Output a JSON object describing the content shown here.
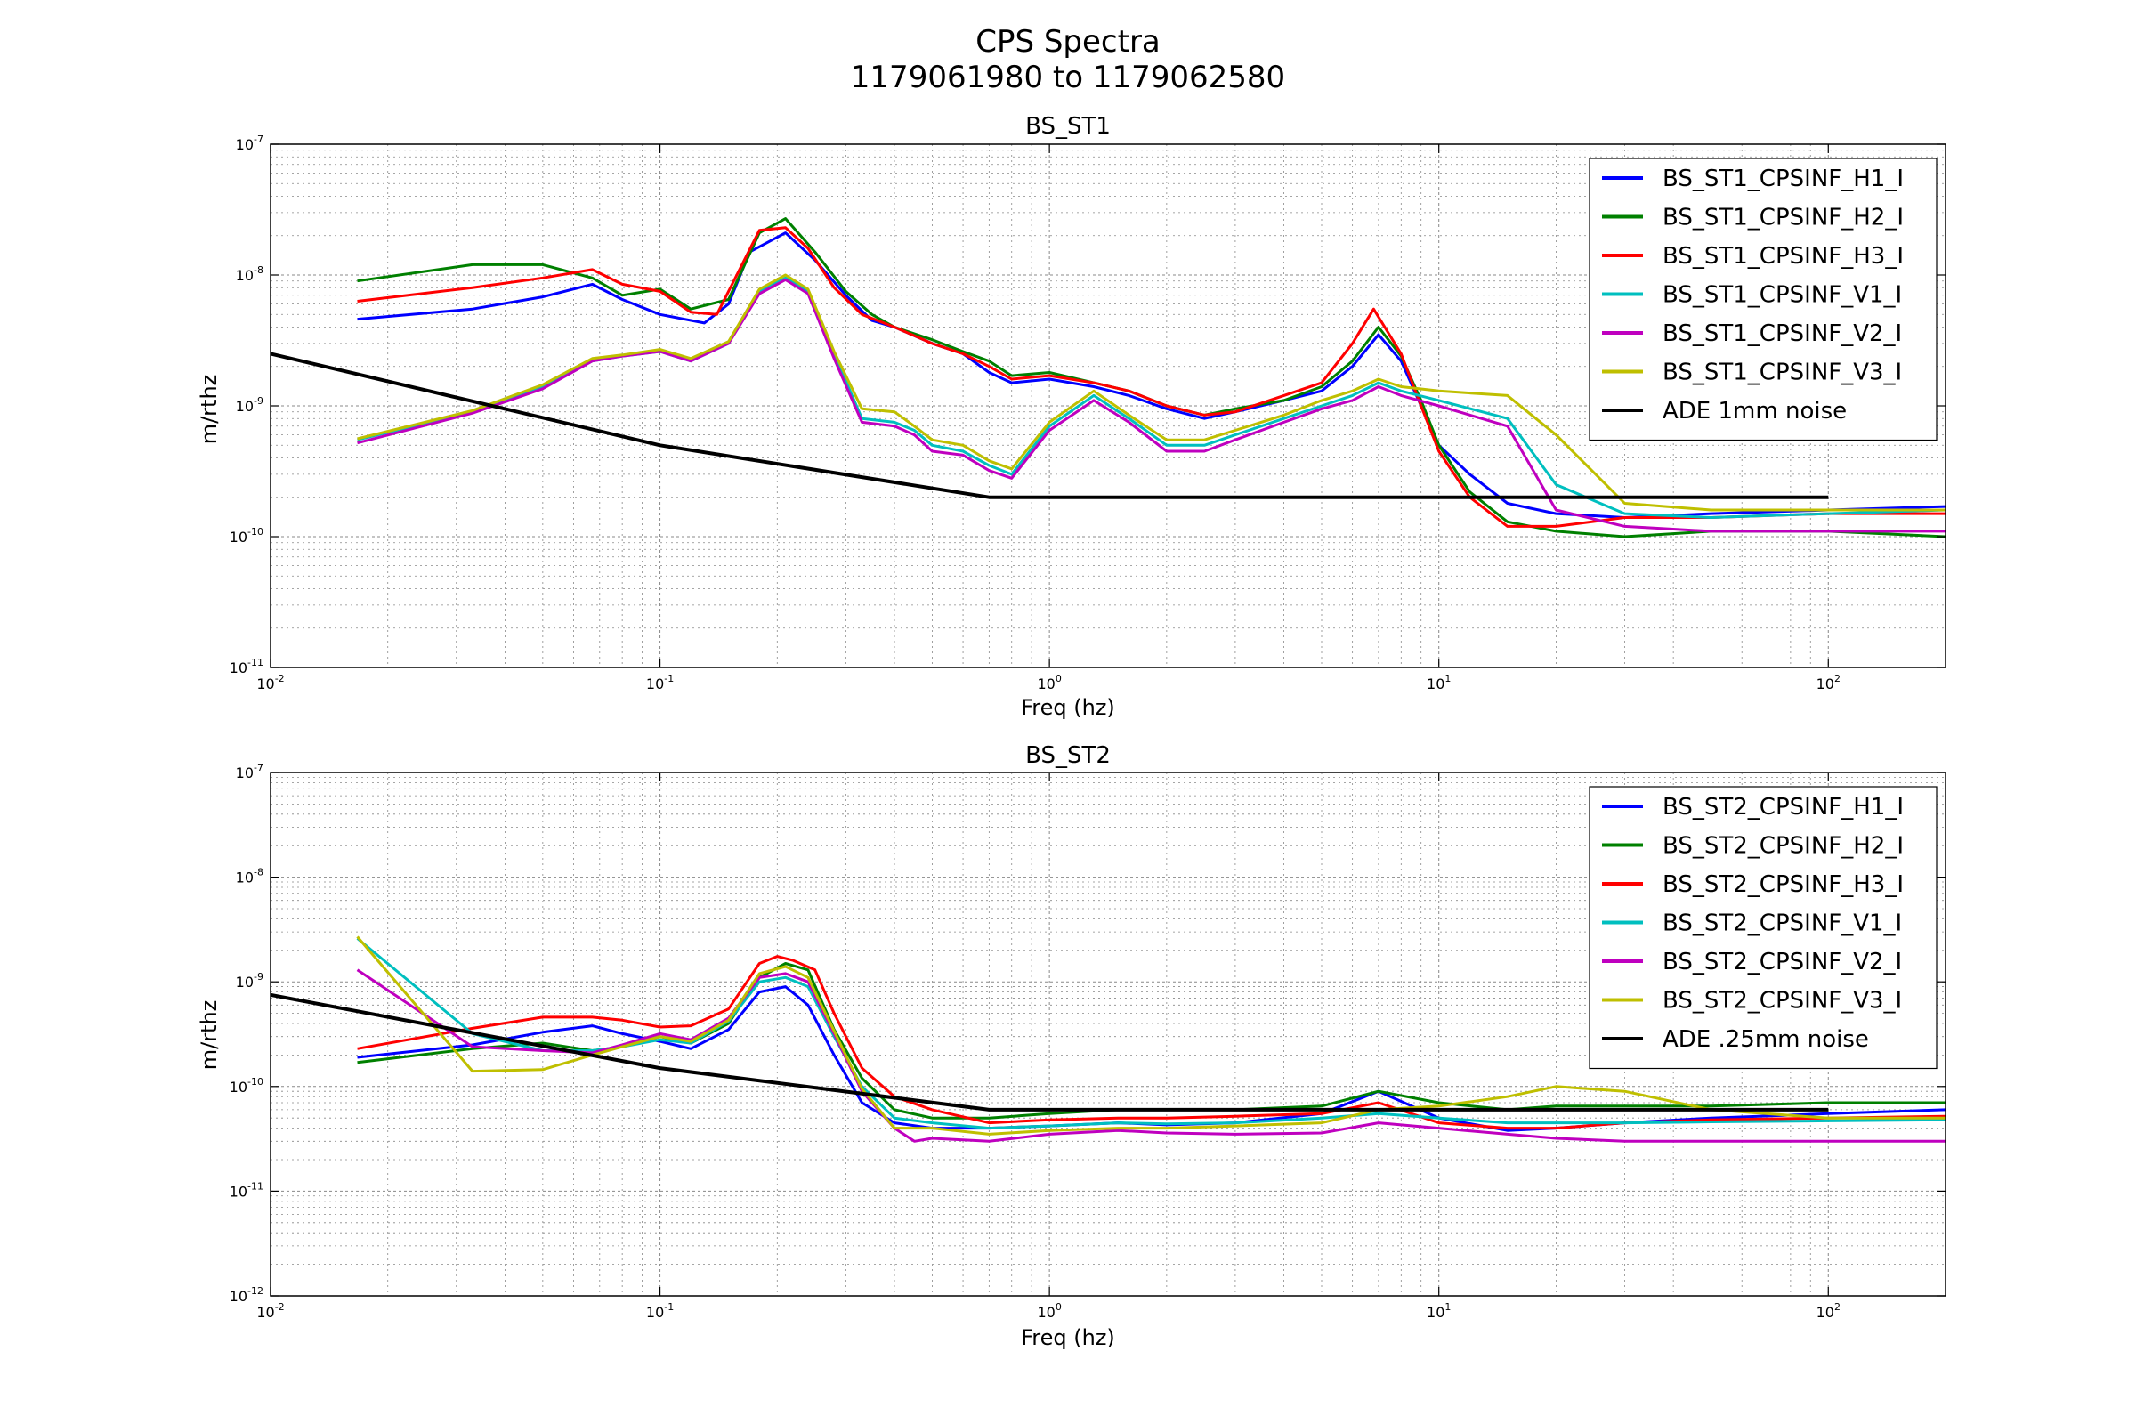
{
  "figure": {
    "title_line1": "CPS Spectra",
    "title_line2": "1179061980 to 1179062580"
  },
  "chart_data": [
    {
      "type": "line",
      "title": "BS_ST1",
      "xlabel": "Freq (hz)",
      "ylabel": "m/rthz",
      "xscale": "log",
      "yscale": "log",
      "xlim": [
        0.01,
        200
      ],
      "ylim": [
        1e-11,
        1e-07
      ],
      "x_tick_labels": [
        "10^-2",
        "10^-1",
        "10^0",
        "10^1",
        "10^2"
      ],
      "y_tick_labels": [
        "10^-11",
        "10^-10",
        "10^-9",
        "10^-8",
        "10^-7"
      ],
      "grid": true,
      "legend_position": "upper-right",
      "series": [
        {
          "name": "BS_ST1_CPSINF_H1_I",
          "color": "#0000ff",
          "x": [
            0.0167,
            0.033,
            0.05,
            0.067,
            0.08,
            0.1,
            0.13,
            0.15,
            0.17,
            0.21,
            0.25,
            0.3,
            0.35,
            0.4,
            0.5,
            0.6,
            0.7,
            0.8,
            1.0,
            1.3,
            1.6,
            2.0,
            2.5,
            3.0,
            4.0,
            5.0,
            6.0,
            7.0,
            8.0,
            9.0,
            10.0,
            12.0,
            15.0,
            20.0,
            30.0,
            50.0,
            100.0,
            200.0
          ],
          "y": [
            4.6e-09,
            5.5e-09,
            6.8e-09,
            8.5e-09,
            6.5e-09,
            5e-09,
            4.3e-09,
            6e-09,
            1.5e-08,
            2.1e-08,
            1.3e-08,
            7e-09,
            4.5e-09,
            4e-09,
            3e-09,
            2.5e-09,
            1.8e-09,
            1.5e-09,
            1.6e-09,
            1.4e-09,
            1.2e-09,
            9.5e-10,
            8e-10,
            9e-10,
            1.1e-09,
            1.3e-09,
            2e-09,
            3.5e-09,
            2.2e-09,
            1e-09,
            5e-10,
            3e-10,
            1.8e-10,
            1.5e-10,
            1.4e-10,
            1.5e-10,
            1.6e-10,
            1.7e-10
          ]
        },
        {
          "name": "BS_ST1_CPSINF_H2_I",
          "color": "#008000",
          "x": [
            0.0167,
            0.033,
            0.05,
            0.067,
            0.08,
            0.1,
            0.12,
            0.15,
            0.18,
            0.21,
            0.25,
            0.3,
            0.35,
            0.4,
            0.5,
            0.6,
            0.7,
            0.8,
            1.0,
            1.3,
            1.6,
            2.0,
            2.5,
            3.0,
            4.0,
            5.0,
            6.0,
            7.0,
            8.0,
            9.0,
            10.0,
            12.0,
            15.0,
            20.0,
            30.0,
            50.0,
            100.0,
            200.0
          ],
          "y": [
            9e-09,
            1.2e-08,
            1.2e-08,
            9.5e-09,
            7e-09,
            7.8e-09,
            5.5e-09,
            6.5e-09,
            2.1e-08,
            2.7e-08,
            1.5e-08,
            7.5e-09,
            5e-09,
            4e-09,
            3.2e-09,
            2.6e-09,
            2.2e-09,
            1.7e-09,
            1.8e-09,
            1.5e-09,
            1.3e-09,
            1e-09,
            8.5e-10,
            9.5e-10,
            1.1e-09,
            1.4e-09,
            2.2e-09,
            4e-09,
            2.4e-09,
            1.1e-09,
            5e-10,
            2.2e-10,
            1.3e-10,
            1.1e-10,
            1e-10,
            1.1e-10,
            1.1e-10,
            1e-10
          ]
        },
        {
          "name": "BS_ST1_CPSINF_H3_I",
          "color": "#ff0000",
          "x": [
            0.0167,
            0.033,
            0.05,
            0.067,
            0.08,
            0.1,
            0.12,
            0.14,
            0.18,
            0.21,
            0.24,
            0.28,
            0.33,
            0.4,
            0.5,
            0.6,
            0.7,
            0.8,
            1.0,
            1.3,
            1.6,
            2.0,
            2.5,
            3.0,
            4.0,
            5.0,
            6.0,
            6.8,
            8.0,
            9.0,
            10.0,
            12.0,
            15.0,
            20.0,
            30.0,
            50.0,
            100.0,
            200.0
          ],
          "y": [
            6.3e-09,
            8e-09,
            9.5e-09,
            1.1e-08,
            8.5e-09,
            7.5e-09,
            5.2e-09,
            5e-09,
            2.2e-08,
            2.3e-08,
            1.6e-08,
            8e-09,
            5e-09,
            4e-09,
            3e-09,
            2.5e-09,
            2e-09,
            1.6e-09,
            1.7e-09,
            1.5e-09,
            1.3e-09,
            1e-09,
            8.5e-10,
            9e-10,
            1.2e-09,
            1.5e-09,
            3e-09,
            5.5e-09,
            2.5e-09,
            1e-09,
            4.5e-10,
            2e-10,
            1.2e-10,
            1.2e-10,
            1.4e-10,
            1.4e-10,
            1.5e-10,
            1.5e-10
          ]
        },
        {
          "name": "BS_ST1_CPSINF_V1_I",
          "color": "#00bfbf",
          "x": [
            0.0167,
            0.033,
            0.05,
            0.067,
            0.08,
            0.1,
            0.12,
            0.15,
            0.18,
            0.21,
            0.24,
            0.28,
            0.33,
            0.4,
            0.45,
            0.5,
            0.6,
            0.7,
            0.8,
            1.0,
            1.3,
            1.6,
            2.0,
            2.5,
            3.0,
            4.0,
            5.0,
            6.0,
            7.0,
            8.0,
            10.0,
            15.0,
            20.0,
            30.0,
            50.0,
            100.0,
            200.0
          ],
          "y": [
            5.5e-10,
            9e-10,
            1.4e-09,
            2.2e-09,
            2.4e-09,
            2.6e-09,
            2.2e-09,
            3e-09,
            7.5e-09,
            9.5e-09,
            7.5e-09,
            2.5e-09,
            8e-10,
            7.5e-10,
            6.5e-10,
            5e-10,
            4.5e-10,
            3.5e-10,
            3e-10,
            7e-10,
            1.2e-09,
            8e-10,
            5e-10,
            5e-10,
            6e-10,
            8e-10,
            1e-09,
            1.2e-09,
            1.5e-09,
            1.3e-09,
            1.1e-09,
            8e-10,
            2.5e-10,
            1.5e-10,
            1.4e-10,
            1.5e-10,
            1.6e-10
          ]
        },
        {
          "name": "BS_ST1_CPSINF_V2_I",
          "color": "#bf00bf",
          "x": [
            0.0167,
            0.033,
            0.05,
            0.067,
            0.08,
            0.1,
            0.12,
            0.15,
            0.18,
            0.21,
            0.24,
            0.28,
            0.33,
            0.4,
            0.45,
            0.5,
            0.6,
            0.7,
            0.8,
            1.0,
            1.3,
            1.6,
            2.0,
            2.5,
            3.0,
            4.0,
            5.0,
            6.0,
            7.0,
            8.0,
            10.0,
            15.0,
            20.0,
            30.0,
            50.0,
            100.0,
            200.0
          ],
          "y": [
            5.2e-10,
            8.8e-10,
            1.35e-09,
            2.2e-09,
            2.4e-09,
            2.6e-09,
            2.2e-09,
            3e-09,
            7.2e-09,
            9.2e-09,
            7.2e-09,
            2.3e-09,
            7.5e-10,
            7e-10,
            6e-10,
            4.5e-10,
            4.2e-10,
            3.2e-10,
            2.8e-10,
            6.5e-10,
            1.1e-09,
            7.5e-10,
            4.5e-10,
            4.5e-10,
            5.5e-10,
            7.5e-10,
            9.5e-10,
            1.1e-09,
            1.4e-09,
            1.2e-09,
            1e-09,
            7e-10,
            1.6e-10,
            1.2e-10,
            1.1e-10,
            1.1e-10,
            1.1e-10
          ]
        },
        {
          "name": "BS_ST1_CPSINF_V3_I",
          "color": "#bfbf00",
          "x": [
            0.0167,
            0.033,
            0.05,
            0.067,
            0.08,
            0.1,
            0.12,
            0.15,
            0.18,
            0.21,
            0.24,
            0.28,
            0.33,
            0.4,
            0.45,
            0.5,
            0.6,
            0.7,
            0.8,
            1.0,
            1.3,
            1.6,
            2.0,
            2.5,
            3.0,
            4.0,
            5.0,
            6.0,
            7.0,
            8.0,
            10.0,
            15.0,
            20.0,
            30.0,
            50.0,
            100.0,
            200.0
          ],
          "y": [
            5.6e-10,
            9.2e-10,
            1.45e-09,
            2.3e-09,
            2.45e-09,
            2.7e-09,
            2.3e-09,
            3.1e-09,
            7.8e-09,
            1e-08,
            7.8e-09,
            2.6e-09,
            9.5e-10,
            9e-10,
            7e-10,
            5.5e-10,
            5e-10,
            3.8e-10,
            3.3e-10,
            7.5e-10,
            1.3e-09,
            8.5e-10,
            5.5e-10,
            5.5e-10,
            6.5e-10,
            8.5e-10,
            1.1e-09,
            1.3e-09,
            1.6e-09,
            1.4e-09,
            1.3e-09,
            1.2e-09,
            6e-10,
            1.8e-10,
            1.6e-10,
            1.6e-10,
            1.6e-10
          ]
        },
        {
          "name": "ADE 1mm noise",
          "color": "#000000",
          "x": [
            0.01,
            0.1,
            0.7,
            100.0
          ],
          "y": [
            2.5e-09,
            5e-10,
            2e-10,
            2e-10
          ]
        }
      ]
    },
    {
      "type": "line",
      "title": "BS_ST2",
      "xlabel": "Freq (hz)",
      "ylabel": "m/rthz",
      "xscale": "log",
      "yscale": "log",
      "xlim": [
        0.01,
        200
      ],
      "ylim": [
        1e-12,
        1e-07
      ],
      "x_tick_labels": [
        "10^-2",
        "10^-1",
        "10^0",
        "10^1",
        "10^2"
      ],
      "y_tick_labels": [
        "10^-12",
        "10^-11",
        "10^-10",
        "10^-9",
        "10^-8",
        "10^-7"
      ],
      "grid": true,
      "legend_position": "upper-right",
      "series": [
        {
          "name": "BS_ST2_CPSINF_H1_I",
          "color": "#0000ff",
          "x": [
            0.0167,
            0.033,
            0.05,
            0.067,
            0.08,
            0.1,
            0.12,
            0.15,
            0.18,
            0.21,
            0.24,
            0.28,
            0.33,
            0.4,
            0.5,
            0.7,
            1.0,
            1.5,
            2.0,
            3.0,
            5.0,
            7.0,
            10.0,
            15.0,
            20.0,
            30.0,
            50.0,
            100.0,
            200.0
          ],
          "y": [
            1.9e-10,
            2.5e-10,
            3.3e-10,
            3.8e-10,
            3.2e-10,
            2.7e-10,
            2.3e-10,
            3.5e-10,
            8e-10,
            9e-10,
            6e-10,
            2e-10,
            7e-11,
            4.5e-11,
            4e-11,
            4e-11,
            4.2e-11,
            4.5e-11,
            4.3e-11,
            4.5e-11,
            5.5e-11,
            9e-11,
            5e-11,
            3.8e-11,
            4e-11,
            4.5e-11,
            5e-11,
            5.5e-11,
            6e-11
          ]
        },
        {
          "name": "BS_ST2_CPSINF_H2_I",
          "color": "#008000",
          "x": [
            0.0167,
            0.033,
            0.05,
            0.067,
            0.08,
            0.1,
            0.12,
            0.15,
            0.18,
            0.21,
            0.24,
            0.28,
            0.33,
            0.4,
            0.5,
            0.7,
            1.0,
            1.5,
            2.0,
            3.0,
            5.0,
            7.0,
            10.0,
            15.0,
            20.0,
            30.0,
            50.0,
            100.0,
            200.0
          ],
          "y": [
            1.7e-10,
            2.3e-10,
            2.6e-10,
            2.2e-10,
            2.4e-10,
            3e-10,
            2.6e-10,
            4e-10,
            1.1e-09,
            1.5e-09,
            1.3e-09,
            3.5e-10,
            1.2e-10,
            6e-11,
            5e-11,
            5e-11,
            5.5e-11,
            6e-11,
            6e-11,
            6e-11,
            6.5e-11,
            9e-11,
            7e-11,
            6e-11,
            6.5e-11,
            6.5e-11,
            6.5e-11,
            7e-11,
            7e-11
          ]
        },
        {
          "name": "BS_ST2_CPSINF_H3_I",
          "color": "#ff0000",
          "x": [
            0.0167,
            0.033,
            0.05,
            0.067,
            0.08,
            0.1,
            0.12,
            0.15,
            0.18,
            0.2,
            0.22,
            0.25,
            0.28,
            0.33,
            0.4,
            0.5,
            0.7,
            1.0,
            1.5,
            2.0,
            3.0,
            5.0,
            7.0,
            10.0,
            15.0,
            20.0,
            30.0,
            50.0,
            100.0,
            200.0
          ],
          "y": [
            2.3e-10,
            3.6e-10,
            4.6e-10,
            4.6e-10,
            4.3e-10,
            3.7e-10,
            3.8e-10,
            5.5e-10,
            1.5e-09,
            1.75e-09,
            1.6e-09,
            1.3e-09,
            5e-10,
            1.5e-10,
            8e-11,
            6e-11,
            4.5e-11,
            4.8e-11,
            5e-11,
            5e-11,
            5.2e-11,
            5.5e-11,
            7e-11,
            4.5e-11,
            4e-11,
            4e-11,
            4.5e-11,
            4.8e-11,
            5e-11,
            5.2e-11
          ]
        },
        {
          "name": "BS_ST2_CPSINF_V1_I",
          "color": "#00bfbf",
          "x": [
            0.0167,
            0.033,
            0.05,
            0.067,
            0.08,
            0.1,
            0.12,
            0.15,
            0.18,
            0.21,
            0.24,
            0.28,
            0.33,
            0.4,
            0.5,
            0.7,
            1.0,
            1.5,
            2.0,
            3.0,
            5.0,
            7.0,
            10.0,
            15.0,
            20.0,
            30.0,
            50.0,
            100.0,
            200.0
          ],
          "y": [
            2.6e-09,
            3.2e-10,
            2.2e-10,
            2.2e-10,
            2.4e-10,
            2.8e-10,
            2.6e-10,
            4.2e-10,
            1e-09,
            1.1e-09,
            9e-10,
            3e-10,
            1e-10,
            5e-11,
            4.5e-11,
            4e-11,
            4.2e-11,
            4.5e-11,
            4.4e-11,
            4.5e-11,
            5e-11,
            5.5e-11,
            5e-11,
            4.5e-11,
            4.5e-11,
            4.5e-11,
            4.6e-11,
            4.7e-11,
            4.8e-11
          ]
        },
        {
          "name": "BS_ST2_CPSINF_V2_I",
          "color": "#bf00bf",
          "x": [
            0.0167,
            0.033,
            0.05,
            0.067,
            0.08,
            0.1,
            0.12,
            0.15,
            0.18,
            0.21,
            0.24,
            0.28,
            0.33,
            0.4,
            0.45,
            0.5,
            0.7,
            1.0,
            1.5,
            2.0,
            3.0,
            5.0,
            7.0,
            10.0,
            15.0,
            20.0,
            30.0,
            50.0,
            100.0,
            200.0
          ],
          "y": [
            1.3e-09,
            2.4e-10,
            2.2e-10,
            2.1e-10,
            2.5e-10,
            3.2e-10,
            2.8e-10,
            4.5e-10,
            1.1e-09,
            1.2e-09,
            1e-09,
            3.2e-10,
            9e-11,
            4e-11,
            3e-11,
            3.2e-11,
            3e-11,
            3.5e-11,
            3.8e-11,
            3.6e-11,
            3.5e-11,
            3.6e-11,
            4.5e-11,
            4e-11,
            3.5e-11,
            3.2e-11,
            3e-11,
            3e-11,
            3e-11,
            3e-11
          ]
        },
        {
          "name": "BS_ST2_CPSINF_V3_I",
          "color": "#bfbf00",
          "x": [
            0.0167,
            0.033,
            0.05,
            0.067,
            0.08,
            0.1,
            0.12,
            0.15,
            0.18,
            0.21,
            0.24,
            0.28,
            0.33,
            0.4,
            0.5,
            0.7,
            1.0,
            1.5,
            2.0,
            3.0,
            5.0,
            7.0,
            10.0,
            15.0,
            20.0,
            30.0,
            50.0,
            100.0,
            200.0
          ],
          "y": [
            2.7e-09,
            1.4e-10,
            1.45e-10,
            2e-10,
            2.4e-10,
            3e-10,
            2.7e-10,
            4.3e-10,
            1.2e-09,
            1.4e-09,
            1.1e-09,
            3.4e-10,
            9.5e-11,
            4e-11,
            4e-11,
            3.5e-11,
            3.8e-11,
            4e-11,
            4e-11,
            4.2e-11,
            4.5e-11,
            6e-11,
            6.5e-11,
            8e-11,
            1e-10,
            9e-11,
            6e-11,
            5e-11,
            5e-11
          ]
        },
        {
          "name": "ADE .25mm noise",
          "color": "#000000",
          "x": [
            0.01,
            0.1,
            0.7,
            100.0
          ],
          "y": [
            7.5e-10,
            1.5e-10,
            6e-11,
            6e-11
          ]
        }
      ]
    }
  ]
}
